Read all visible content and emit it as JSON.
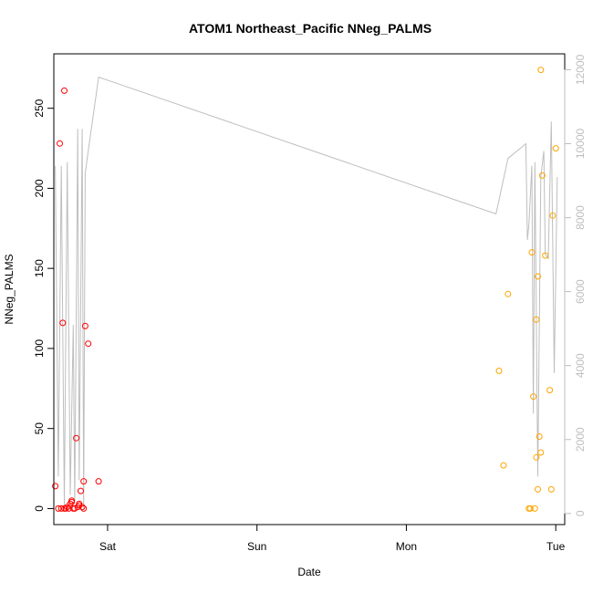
{
  "chart_data": {
    "type": "scatter",
    "title": "ATOM1 Northeast_Pacific NNeg_PALMS",
    "xlabel": "Date",
    "ylabel": "NNeg_PALMS",
    "ylim": [
      -10,
      284
    ],
    "y_ticks": [
      0,
      50,
      100,
      150,
      200,
      250
    ],
    "y2_ticks": [
      0,
      2000,
      4000,
      6000,
      8000,
      10000,
      12000
    ],
    "y2lim": [
      -300,
      12430
    ],
    "xlim": [
      -0.36,
      3.06
    ],
    "x_ticks": [
      {
        "label": "Sat",
        "value": 0
      },
      {
        "label": "Sun",
        "value": 1
      },
      {
        "label": "Mon",
        "value": 2
      },
      {
        "label": "Tue",
        "value": 3
      }
    ],
    "colors": {
      "series1": "#ff0000",
      "series2": "#ffa500",
      "line": "#bebebe",
      "axis": "#000000",
      "right_axis": "#bebebe"
    },
    "series": [
      {
        "color": "#ff0000",
        "points": [
          {
            "x": -0.35,
            "y": 14
          },
          {
            "x": -0.33,
            "y": 0
          },
          {
            "x": -0.32,
            "y": 228
          },
          {
            "x": -0.31,
            "y": 0
          },
          {
            "x": -0.3,
            "y": 116
          },
          {
            "x": -0.29,
            "y": 261
          },
          {
            "x": -0.29,
            "y": 0
          },
          {
            "x": -0.28,
            "y": 0
          },
          {
            "x": -0.27,
            "y": 1
          },
          {
            "x": -0.26,
            "y": 0
          },
          {
            "x": -0.25,
            "y": 3
          },
          {
            "x": -0.24,
            "y": 5
          },
          {
            "x": -0.24,
            "y": 4
          },
          {
            "x": -0.23,
            "y": 0
          },
          {
            "x": -0.22,
            "y": 0
          },
          {
            "x": -0.21,
            "y": 44
          },
          {
            "x": -0.2,
            "y": 1
          },
          {
            "x": -0.19,
            "y": 3
          },
          {
            "x": -0.19,
            "y": 2
          },
          {
            "x": -0.18,
            "y": 11
          },
          {
            "x": -0.17,
            "y": 1
          },
          {
            "x": -0.16,
            "y": 17
          },
          {
            "x": -0.16,
            "y": 0
          },
          {
            "x": -0.15,
            "y": 114
          },
          {
            "x": -0.13,
            "y": 103
          },
          {
            "x": -0.06,
            "y": 17
          }
        ]
      },
      {
        "color": "#ffa500",
        "points": [
          {
            "x": 2.62,
            "y": 86
          },
          {
            "x": 2.65,
            "y": 27
          },
          {
            "x": 2.68,
            "y": 134
          },
          {
            "x": 2.82,
            "y": 0
          },
          {
            "x": 2.83,
            "y": 0
          },
          {
            "x": 2.84,
            "y": 160
          },
          {
            "x": 2.85,
            "y": 70
          },
          {
            "x": 2.86,
            "y": 0
          },
          {
            "x": 2.87,
            "y": 32
          },
          {
            "x": 2.87,
            "y": 118
          },
          {
            "x": 2.88,
            "y": 145
          },
          {
            "x": 2.88,
            "y": 12
          },
          {
            "x": 2.89,
            "y": 45
          },
          {
            "x": 2.9,
            "y": 35
          },
          {
            "x": 2.9,
            "y": 274
          },
          {
            "x": 2.91,
            "y": 208
          },
          {
            "x": 2.93,
            "y": 158
          },
          {
            "x": 2.96,
            "y": 74
          },
          {
            "x": 2.97,
            "y": 12
          },
          {
            "x": 2.98,
            "y": 183
          },
          {
            "x": 3.0,
            "y": 225
          }
        ]
      }
    ],
    "line_series": {
      "axis": "right",
      "color": "#bebebe",
      "points": [
        [
          -0.35,
          9400
        ],
        [
          -0.33,
          1000
        ],
        [
          -0.31,
          9400
        ],
        [
          -0.29,
          200
        ],
        [
          -0.27,
          9500
        ],
        [
          -0.25,
          500
        ],
        [
          -0.23,
          5100
        ],
        [
          -0.22,
          300
        ],
        [
          -0.2,
          10400
        ],
        [
          -0.19,
          900
        ],
        [
          -0.17,
          10400
        ],
        [
          -0.16,
          100
        ],
        [
          -0.15,
          9200
        ],
        [
          -0.13,
          9800
        ],
        [
          -0.06,
          11800
        ],
        [
          2.6,
          8100
        ],
        [
          2.68,
          9600
        ],
        [
          2.8,
          10000
        ],
        [
          2.81,
          7400
        ],
        [
          2.82,
          7800
        ],
        [
          2.84,
          9400
        ],
        [
          2.85,
          2700
        ],
        [
          2.86,
          9500
        ],
        [
          2.88,
          1000
        ],
        [
          2.9,
          9100
        ],
        [
          2.92,
          9800
        ],
        [
          2.93,
          7000
        ],
        [
          2.95,
          6900
        ],
        [
          2.97,
          10600
        ],
        [
          2.99,
          3800
        ],
        [
          3.01,
          9100
        ]
      ]
    }
  }
}
